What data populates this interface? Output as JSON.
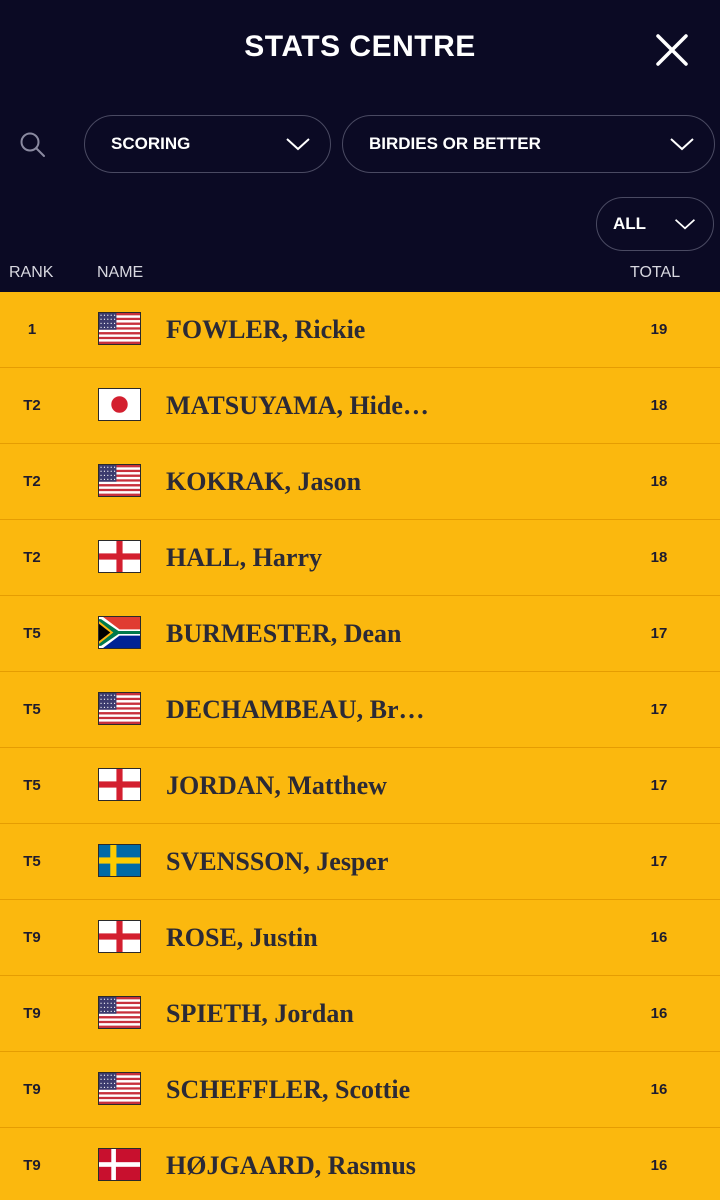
{
  "header": {
    "title": "STATS CENTRE",
    "close_icon": "close-icon",
    "search_icon": "search-icon"
  },
  "filters": {
    "category": "SCORING",
    "stat": "BIRDIES OR BETTER",
    "round": "ALL"
  },
  "columns": {
    "rank": "RANK",
    "name": "NAME",
    "total": "TOTAL"
  },
  "colors": {
    "header_bg": "#0b0a24",
    "row_bg": "#fbb80e",
    "row_divider": "#e59d02"
  },
  "players": [
    {
      "rank": "1",
      "flag": "usa",
      "name": "FOWLER, Rickie",
      "total": "19"
    },
    {
      "rank": "T2",
      "flag": "japan",
      "name": "MATSUYAMA, Hide…",
      "total": "18"
    },
    {
      "rank": "T2",
      "flag": "usa",
      "name": "KOKRAK, Jason",
      "total": "18"
    },
    {
      "rank": "T2",
      "flag": "england",
      "name": "HALL, Harry",
      "total": "18"
    },
    {
      "rank": "T5",
      "flag": "south-africa",
      "name": "BURMESTER, Dean",
      "total": "17"
    },
    {
      "rank": "T5",
      "flag": "usa",
      "name": "DECHAMBEAU, Br…",
      "total": "17"
    },
    {
      "rank": "T5",
      "flag": "england",
      "name": "JORDAN, Matthew",
      "total": "17"
    },
    {
      "rank": "T5",
      "flag": "sweden",
      "name": "SVENSSON, Jesper",
      "total": "17"
    },
    {
      "rank": "T9",
      "flag": "england",
      "name": "ROSE, Justin",
      "total": "16"
    },
    {
      "rank": "T9",
      "flag": "usa",
      "name": "SPIETH, Jordan",
      "total": "16"
    },
    {
      "rank": "T9",
      "flag": "usa",
      "name": "SCHEFFLER, Scottie",
      "total": "16"
    },
    {
      "rank": "T9",
      "flag": "denmark",
      "name": "HØJGAARD, Rasmus",
      "total": "16"
    }
  ]
}
